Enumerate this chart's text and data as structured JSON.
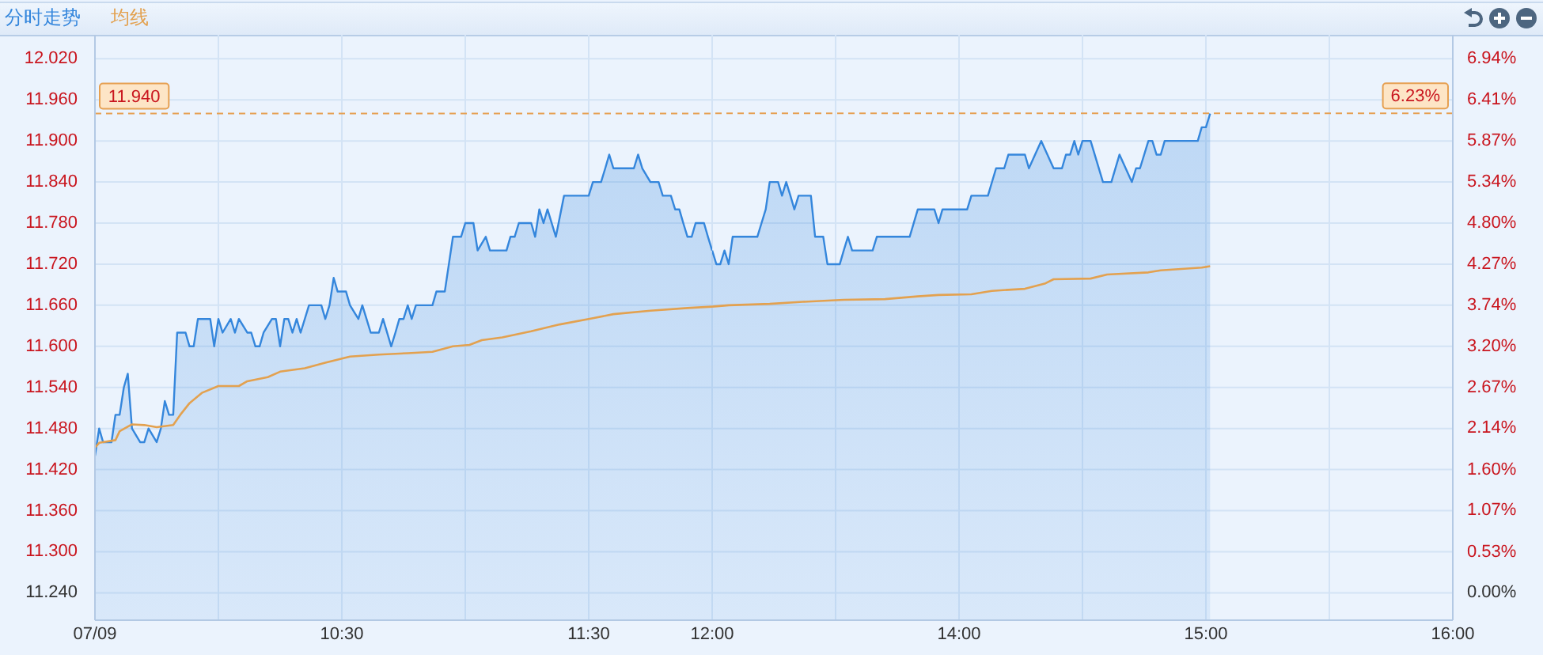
{
  "chart_data": [
    {
      "type": "line",
      "legend": "top left",
      "grid": true,
      "xlim": [
        9.5,
        12
      ],
      "xticks": [
        {
          "value": 9.5,
          "label": "07/09"
        },
        {
          "value": 10,
          "label": null
        },
        {
          "value": 10.5,
          "label": "10:30"
        },
        {
          "value": 11,
          "label": null
        },
        {
          "value": 11.5,
          "label": "11:30"
        },
        {
          "value": 12,
          "label": "12:00"
        }
      ],
      "ylim": [
        11.2,
        12.055
      ],
      "yticks": [
        {
          "value": 11.24,
          "label": "11.240"
        },
        {
          "value": 11.3,
          "label": "11.300"
        },
        {
          "value": 11.36,
          "label": "11.360"
        },
        {
          "value": 11.42,
          "label": "11.420"
        },
        {
          "value": 11.48,
          "label": "11.480"
        },
        {
          "value": 11.54,
          "label": "11.540"
        },
        {
          "value": 11.6,
          "label": "11.600"
        },
        {
          "value": 11.66,
          "label": "11.660"
        },
        {
          "value": 11.72,
          "label": "11.720"
        },
        {
          "value": 11.78,
          "label": "11.780"
        },
        {
          "value": 11.84,
          "label": "11.840"
        },
        {
          "value": 11.9,
          "label": "11.900"
        },
        {
          "value": 11.96,
          "label": "11.960"
        },
        {
          "value": 12.02,
          "label": "12.020"
        }
      ],
      "series": [
        {
          "name": "分时走势",
          "type": "area",
          "color": "#3486dc",
          "x": [
            9.5,
            9.517,
            9.533,
            9.567,
            9.583,
            9.6,
            9.617,
            9.633,
            9.65,
            9.683,
            9.7,
            9.717,
            9.75,
            9.767,
            9.783,
            9.8,
            9.817,
            9.833,
            9.867,
            9.883,
            9.9,
            9.917,
            9.967,
            9.983,
            10.0,
            10.017,
            10.05,
            10.067,
            10.083,
            10.117,
            10.133,
            10.15,
            10.167,
            10.183,
            10.217,
            10.233,
            10.25,
            10.267,
            10.283,
            10.3,
            10.317,
            10.333,
            10.367,
            10.417,
            10.433,
            10.45,
            10.467,
            10.483,
            10.517,
            10.533,
            10.567,
            10.583,
            10.6,
            10.617,
            10.65,
            10.667,
            10.7,
            10.717,
            10.733,
            10.75,
            10.767,
            10.783,
            10.8,
            10.867,
            10.883,
            10.917,
            10.95,
            10.983,
            11.0,
            11.033,
            11.05,
            11.083,
            11.1,
            11.167,
            11.183,
            11.2,
            11.217,
            11.267,
            11.283,
            11.3,
            11.317,
            11.333,
            11.367,
            11.4,
            11.5,
            11.517,
            11.55,
            11.567,
            11.583,
            11.6,
            11.683,
            11.7,
            11.717,
            11.75,
            11.783,
            11.8,
            11.833,
            11.85,
            11.867,
            11.883,
            11.9,
            11.917,
            11.933,
            11.967,
            11.983,
            12.0
          ],
          "values": [
            11.44,
            11.48,
            11.46,
            11.46,
            11.5,
            11.5,
            11.54,
            11.56,
            11.48,
            11.46,
            11.46,
            11.48,
            11.46,
            11.48,
            11.52,
            11.5,
            11.5,
            11.62,
            11.62,
            11.6,
            11.6,
            11.64,
            11.64,
            11.6,
            11.64,
            11.62,
            11.64,
            11.62,
            11.64,
            11.62,
            11.62,
            11.6,
            11.6,
            11.62,
            11.64,
            11.64,
            11.6,
            11.64,
            11.64,
            11.62,
            11.64,
            11.62,
            11.66,
            11.66,
            11.64,
            11.66,
            11.7,
            11.68,
            11.68,
            11.66,
            11.64,
            11.66,
            11.64,
            11.62,
            11.62,
            11.64,
            11.6,
            11.62,
            11.64,
            11.64,
            11.66,
            11.64,
            11.66,
            11.66,
            11.68,
            11.68,
            11.76,
            11.76,
            11.78,
            11.78,
            11.74,
            11.76,
            11.74,
            11.74,
            11.76,
            11.76,
            11.78,
            11.78,
            11.76,
            11.8,
            11.78,
            11.8,
            11.76,
            11.82,
            11.82,
            11.84,
            11.84,
            11.86,
            11.88,
            11.86,
            11.86,
            11.88,
            11.86,
            11.84,
            11.84,
            11.82,
            11.82,
            11.8,
            11.8,
            11.78,
            11.76,
            11.76,
            11.78,
            11.78,
            11.76,
            11.74
          ]
        },
        {
          "name": "均线",
          "type": "line",
          "color": "#e3a14f",
          "x": [
            9.5,
            9.517,
            9.583,
            9.6,
            9.65,
            9.7,
            9.75,
            9.817,
            9.85,
            9.883,
            9.933,
            10.0,
            10.083,
            10.117,
            10.2,
            10.25,
            10.35,
            10.433,
            10.533,
            10.65,
            10.767,
            10.867,
            10.95,
            11.017,
            11.067,
            11.15,
            11.267,
            11.383,
            11.517,
            11.6,
            11.75,
            11.9,
            12.0
          ],
          "values": [
            11.452,
            11.459,
            11.463,
            11.476,
            11.486,
            11.485,
            11.482,
            11.485,
            11.502,
            11.517,
            11.532,
            11.542,
            11.542,
            11.549,
            11.555,
            11.563,
            11.568,
            11.576,
            11.585,
            11.588,
            11.59,
            11.592,
            11.6,
            11.602,
            11.609,
            11.613,
            11.622,
            11.632,
            11.641,
            11.647,
            11.652,
            11.656,
            11.658
          ]
        }
      ],
      "ref_lines": [
        {
          "axis": "y",
          "value": 11.94,
          "label": "11.940",
          "color": "#e6a052",
          "line_style": "dashed"
        }
      ]
    },
    {
      "type": "line",
      "grid": true,
      "tick_labels": "x",
      "xlim": [
        13,
        16
      ],
      "xticks": [
        {
          "value": 13.5,
          "label": null
        },
        {
          "value": 14,
          "label": "14:00"
        },
        {
          "value": 14.5,
          "label": null
        },
        {
          "value": 15,
          "label": "15:00"
        },
        {
          "value": 15.5,
          "label": null
        },
        {
          "value": 16,
          "label": "16:00"
        }
      ],
      "ylim": [
        11.2,
        12.055
      ],
      "yticks": [
        11.24,
        11.3,
        11.36,
        11.42,
        11.48,
        11.54,
        11.6,
        11.66,
        11.72,
        11.78,
        11.84,
        11.9,
        11.96,
        12.02
      ],
      "y2lim": [
        -0.356,
        7.251
      ],
      "y2ticks": [
        {
          "value": 0,
          "label": "0.00%"
        },
        {
          "value": 0.53,
          "label": "0.53%"
        },
        {
          "value": 1.07,
          "label": "1.07%"
        },
        {
          "value": 1.6,
          "label": "1.60%"
        },
        {
          "value": 2.14,
          "label": "2.14%"
        },
        {
          "value": 2.67,
          "label": "2.67%"
        },
        {
          "value": 3.2,
          "label": "3.20%"
        },
        {
          "value": 3.74,
          "label": "3.74%"
        },
        {
          "value": 4.27,
          "label": "4.27%"
        },
        {
          "value": 4.8,
          "label": "4.80%"
        },
        {
          "value": 5.34,
          "label": "5.34%"
        },
        {
          "value": 5.87,
          "label": "5.87%"
        },
        {
          "value": 6.41,
          "label": "6.41%"
        },
        {
          "value": 6.94,
          "label": "6.94%"
        }
      ],
      "series": [
        {
          "type": "area",
          "color": "#3486dc",
          "x": [
            13.0,
            13.017,
            13.033,
            13.05,
            13.067,
            13.083,
            13.183,
            13.2,
            13.217,
            13.233,
            13.267,
            13.283,
            13.3,
            13.317,
            13.333,
            13.35,
            13.4,
            13.417,
            13.45,
            13.467,
            13.517,
            13.533,
            13.55,
            13.567,
            13.65,
            13.667,
            13.8,
            13.833,
            13.9,
            13.917,
            13.933,
            14.033,
            14.05,
            14.117,
            14.15,
            14.183,
            14.2,
            14.267,
            14.283,
            14.333,
            14.383,
            14.417,
            14.433,
            14.45,
            14.467,
            14.483,
            14.5,
            14.533,
            14.583,
            14.617,
            14.65,
            14.7,
            14.717,
            14.733,
            14.767,
            14.783,
            14.8,
            14.817,
            14.833,
            14.967,
            14.983,
            15.0,
            15.017
          ],
          "values": [
            11.74,
            11.72,
            11.72,
            11.74,
            11.72,
            11.76,
            11.76,
            11.78,
            11.8,
            11.84,
            11.84,
            11.82,
            11.84,
            11.82,
            11.8,
            11.82,
            11.82,
            11.76,
            11.76,
            11.72,
            11.72,
            11.74,
            11.76,
            11.74,
            11.74,
            11.76,
            11.76,
            11.8,
            11.8,
            11.78,
            11.8,
            11.8,
            11.82,
            11.82,
            11.86,
            11.86,
            11.88,
            11.88,
            11.86,
            11.9,
            11.86,
            11.86,
            11.88,
            11.88,
            11.9,
            11.88,
            11.9,
            11.9,
            11.84,
            11.84,
            11.88,
            11.84,
            11.86,
            11.86,
            11.9,
            11.9,
            11.88,
            11.88,
            11.9,
            11.9,
            11.92,
            11.92,
            11.94
          ]
        },
        {
          "type": "line",
          "color": "#e3a14f",
          "x": [
            13.0,
            13.067,
            13.233,
            13.367,
            13.533,
            13.7,
            13.833,
            13.917,
            14.05,
            14.133,
            14.267,
            14.35,
            14.383,
            14.533,
            14.6,
            14.767,
            14.817,
            14.983,
            15.017
          ],
          "values": [
            11.658,
            11.66,
            11.662,
            11.665,
            11.668,
            11.669,
            11.673,
            11.675,
            11.676,
            11.681,
            11.684,
            11.692,
            11.698,
            11.699,
            11.705,
            11.708,
            11.711,
            11.715,
            11.717
          ]
        }
      ],
      "ref_lines": [
        {
          "axis": "y2",
          "value": 6.23,
          "label": "6.23%",
          "color": "#e6a052",
          "line_style": "dashed"
        }
      ]
    }
  ]
}
